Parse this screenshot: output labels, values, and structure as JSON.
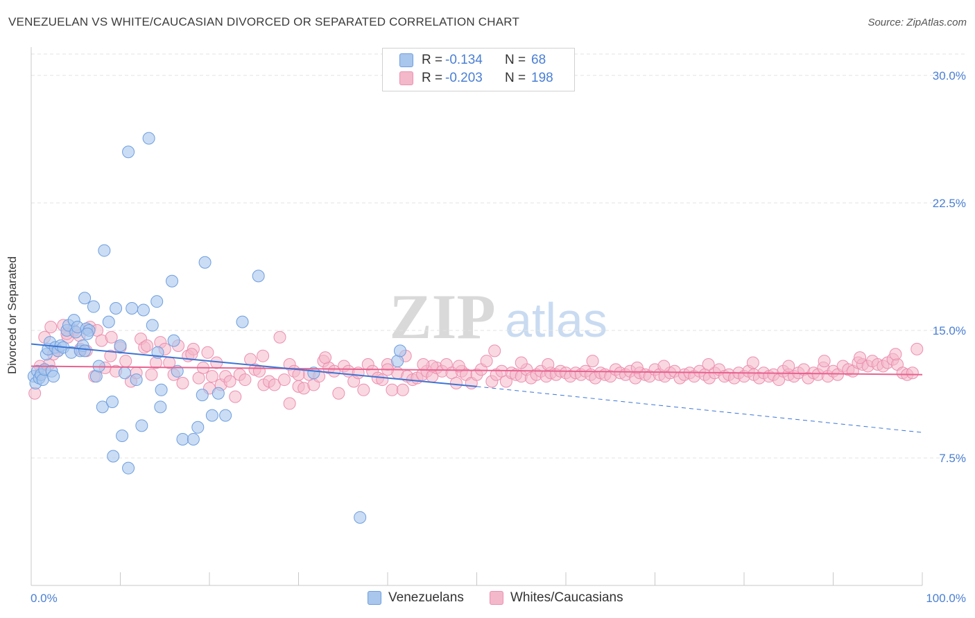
{
  "title": "VENEZUELAN VS WHITE/CAUCASIAN DIVORCED OR SEPARATED CORRELATION CHART",
  "source": "Source: ZipAtlas.com",
  "watermark": {
    "zip": "ZIP",
    "atlas": "atlas"
  },
  "legend": {
    "rows": [
      {
        "label": "R =",
        "r": "-0.134",
        "n_label": "N =",
        "n": "68"
      },
      {
        "label": "R =",
        "r": "-0.203",
        "n_label": "N =",
        "n": "198"
      }
    ]
  },
  "bottom_legend": [
    "Venezuelans",
    "Whites/Caucasians"
  ],
  "colors": {
    "blue_fill": "#a9c6ec",
    "blue_stroke": "#6d9ee0",
    "blue_line": "#3b74d4",
    "pink_fill": "#f4b8cb",
    "pink_stroke": "#ec8fae",
    "pink_line": "#e8628f",
    "axis_text": "#4a7fd4",
    "grid": "#e3e3e3"
  },
  "chart_data": {
    "type": "scatter",
    "title": "VENEZUELAN VS WHITE/CAUCASIAN DIVORCED OR SEPARATED CORRELATION CHART",
    "xlabel": "",
    "ylabel": "Divorced or Separated",
    "xlim": [
      0,
      100
    ],
    "ylim": [
      0,
      31.5
    ],
    "x_tick_labels": [
      "0.0%",
      "100.0%"
    ],
    "y_ticks": [
      7.5,
      15.0,
      22.5,
      30.0
    ],
    "y_tick_labels": [
      "7.5%",
      "15.0%",
      "22.5%",
      "30.0%"
    ],
    "grid": true,
    "legend_position": "top-center",
    "series": [
      {
        "name": "Venezuelans",
        "R": -0.134,
        "N": 68,
        "trend": {
          "x0": 0,
          "y0": 14.2,
          "x1": 50,
          "y1": 11.7,
          "dash_to_x": 100,
          "dash_to_y": 9.0
        },
        "points": [
          [
            0.3,
            12.3
          ],
          [
            0.5,
            11.9
          ],
          [
            0.7,
            12.6
          ],
          [
            0.9,
            12.2
          ],
          [
            1.1,
            12.4
          ],
          [
            1.3,
            12.1
          ],
          [
            1.5,
            12.7
          ],
          [
            1.7,
            13.6
          ],
          [
            1.9,
            13.9
          ],
          [
            2.1,
            14.3
          ],
          [
            2.3,
            12.6
          ],
          [
            2.5,
            12.3
          ],
          [
            2.7,
            14.0
          ],
          [
            3.0,
            13.8
          ],
          [
            3.3,
            14.1
          ],
          [
            3.6,
            14.0
          ],
          [
            4.0,
            15.0
          ],
          [
            4.2,
            15.3
          ],
          [
            4.5,
            13.7
          ],
          [
            4.8,
            15.6
          ],
          [
            5.0,
            14.9
          ],
          [
            5.2,
            15.2
          ],
          [
            5.5,
            13.8
          ],
          [
            5.8,
            14.1
          ],
          [
            6.0,
            16.9
          ],
          [
            6.2,
            15.1
          ],
          [
            6.5,
            15.0
          ],
          [
            6.0,
            13.8
          ],
          [
            6.3,
            14.8
          ],
          [
            7.3,
            12.3
          ],
          [
            7.6,
            12.9
          ],
          [
            8.0,
            10.5
          ],
          [
            7.0,
            16.4
          ],
          [
            8.2,
            19.7
          ],
          [
            8.7,
            15.5
          ],
          [
            9.2,
            7.6
          ],
          [
            9.1,
            10.8
          ],
          [
            9.5,
            16.3
          ],
          [
            10.0,
            14.1
          ],
          [
            10.2,
            8.8
          ],
          [
            10.5,
            12.5
          ],
          [
            10.9,
            6.9
          ],
          [
            11.3,
            16.3
          ],
          [
            11.8,
            12.1
          ],
          [
            12.4,
            9.4
          ],
          [
            12.6,
            16.2
          ],
          [
            13.2,
            26.3
          ],
          [
            13.6,
            15.3
          ],
          [
            14.1,
            16.7
          ],
          [
            14.2,
            13.7
          ],
          [
            14.6,
            11.5
          ],
          [
            14.5,
            10.5
          ],
          [
            15.8,
            17.9
          ],
          [
            16.0,
            14.4
          ],
          [
            16.4,
            12.6
          ],
          [
            17.0,
            8.6
          ],
          [
            10.9,
            25.5
          ],
          [
            18.2,
            8.6
          ],
          [
            18.7,
            9.3
          ],
          [
            19.2,
            11.2
          ],
          [
            19.5,
            19.0
          ],
          [
            20.3,
            10.0
          ],
          [
            21.0,
            11.3
          ],
          [
            21.8,
            10.0
          ],
          [
            23.7,
            15.5
          ],
          [
            25.5,
            18.2
          ],
          [
            31.7,
            12.5
          ],
          [
            36.9,
            4.0
          ],
          [
            41.1,
            13.2
          ],
          [
            41.4,
            13.8
          ]
        ]
      },
      {
        "name": "Whites/Caucasians",
        "R": -0.203,
        "N": 198,
        "trend": {
          "x0": 0,
          "y0": 12.9,
          "x1": 100,
          "y1": 12.4
        },
        "points": [
          [
            0.4,
            11.3
          ],
          [
            1.1,
            12.5
          ],
          [
            1.5,
            14.6
          ],
          [
            2.0,
            13.0
          ],
          [
            2.2,
            15.2
          ],
          [
            3.0,
            13.8
          ],
          [
            3.6,
            15.3
          ],
          [
            4.1,
            14.6
          ],
          [
            4.8,
            15.0
          ],
          [
            5.4,
            14.7
          ],
          [
            6.2,
            13.8
          ],
          [
            6.6,
            15.2
          ],
          [
            7.1,
            12.3
          ],
          [
            7.4,
            15.0
          ],
          [
            7.9,
            14.4
          ],
          [
            8.3,
            12.8
          ],
          [
            8.9,
            13.5
          ],
          [
            9.5,
            12.6
          ],
          [
            10.0,
            14.0
          ],
          [
            10.6,
            13.2
          ],
          [
            11.2,
            12.0
          ],
          [
            11.8,
            12.5
          ],
          [
            12.3,
            14.5
          ],
          [
            12.7,
            14.0
          ],
          [
            13.0,
            14.1
          ],
          [
            13.5,
            12.4
          ],
          [
            14.0,
            13.1
          ],
          [
            14.5,
            14.3
          ],
          [
            15.0,
            13.9
          ],
          [
            15.5,
            13.1
          ],
          [
            16.0,
            12.4
          ],
          [
            16.5,
            14.1
          ],
          [
            17.0,
            11.9
          ],
          [
            17.6,
            13.5
          ],
          [
            18.2,
            13.9
          ],
          [
            18.8,
            12.2
          ],
          [
            19.3,
            12.8
          ],
          [
            19.8,
            13.7
          ],
          [
            20.3,
            12.3
          ],
          [
            20.8,
            13.1
          ],
          [
            21.3,
            11.8
          ],
          [
            21.8,
            12.3
          ],
          [
            22.3,
            12.0
          ],
          [
            22.9,
            11.1
          ],
          [
            23.4,
            12.4
          ],
          [
            24.0,
            12.1
          ],
          [
            24.6,
            13.3
          ],
          [
            25.1,
            12.7
          ],
          [
            25.6,
            12.6
          ],
          [
            26.1,
            11.8
          ],
          [
            26.7,
            12.0
          ],
          [
            27.3,
            11.8
          ],
          [
            27.9,
            14.6
          ],
          [
            28.4,
            12.1
          ],
          [
            29.0,
            13.0
          ],
          [
            29.5,
            12.6
          ],
          [
            30.0,
            11.7
          ],
          [
            30.6,
            11.6
          ],
          [
            31.2,
            12.4
          ],
          [
            31.7,
            11.8
          ],
          [
            32.3,
            12.3
          ],
          [
            32.8,
            13.2
          ],
          [
            33.4,
            12.8
          ],
          [
            34.0,
            12.6
          ],
          [
            34.5,
            11.3
          ],
          [
            35.1,
            12.9
          ],
          [
            35.6,
            12.6
          ],
          [
            36.2,
            12.0
          ],
          [
            36.7,
            12.5
          ],
          [
            37.3,
            11.5
          ],
          [
            37.8,
            13.0
          ],
          [
            38.3,
            12.6
          ],
          [
            38.9,
            12.2
          ],
          [
            39.4,
            12.1
          ],
          [
            40.0,
            13.0
          ],
          [
            40.5,
            11.5
          ],
          [
            41.1,
            12.5
          ],
          [
            41.7,
            11.5
          ],
          [
            42.2,
            12.3
          ],
          [
            42.8,
            12.1
          ],
          [
            43.3,
            12.2
          ],
          [
            43.9,
            12.4
          ],
          [
            44.4,
            12.6
          ],
          [
            45.0,
            12.3
          ],
          [
            45.5,
            12.8
          ],
          [
            46.1,
            12.6
          ],
          [
            46.6,
            13.0
          ],
          [
            47.2,
            12.5
          ],
          [
            47.7,
            11.9
          ],
          [
            48.3,
            12.6
          ],
          [
            48.8,
            12.4
          ],
          [
            49.4,
            11.9
          ],
          [
            50.0,
            12.4
          ],
          [
            50.5,
            12.7
          ],
          [
            51.1,
            13.2
          ],
          [
            51.7,
            12.0
          ],
          [
            52.2,
            12.4
          ],
          [
            52.8,
            12.6
          ],
          [
            53.3,
            12.0
          ],
          [
            53.9,
            12.5
          ],
          [
            54.4,
            12.4
          ],
          [
            55.0,
            12.3
          ],
          [
            55.6,
            12.7
          ],
          [
            56.1,
            12.2
          ],
          [
            56.7,
            12.4
          ],
          [
            57.2,
            12.6
          ],
          [
            57.8,
            12.3
          ],
          [
            58.3,
            12.5
          ],
          [
            58.9,
            12.4
          ],
          [
            59.4,
            12.6
          ],
          [
            60.0,
            12.5
          ],
          [
            60.5,
            12.3
          ],
          [
            61.1,
            12.5
          ],
          [
            61.7,
            12.4
          ],
          [
            62.2,
            12.6
          ],
          [
            62.8,
            12.4
          ],
          [
            63.3,
            12.2
          ],
          [
            63.9,
            12.5
          ],
          [
            64.4,
            12.4
          ],
          [
            65.0,
            12.3
          ],
          [
            65.6,
            12.7
          ],
          [
            66.1,
            12.5
          ],
          [
            66.7,
            12.4
          ],
          [
            67.2,
            12.6
          ],
          [
            67.8,
            12.2
          ],
          [
            68.3,
            12.5
          ],
          [
            68.9,
            12.4
          ],
          [
            69.4,
            12.3
          ],
          [
            70.0,
            12.7
          ],
          [
            70.5,
            12.4
          ],
          [
            71.1,
            12.3
          ],
          [
            71.7,
            12.5
          ],
          [
            72.2,
            12.6
          ],
          [
            72.8,
            12.2
          ],
          [
            73.3,
            12.4
          ],
          [
            73.9,
            12.5
          ],
          [
            74.4,
            12.3
          ],
          [
            75.0,
            12.6
          ],
          [
            75.6,
            12.4
          ],
          [
            76.1,
            12.2
          ],
          [
            76.7,
            12.5
          ],
          [
            77.2,
            12.7
          ],
          [
            77.8,
            12.3
          ],
          [
            78.3,
            12.4
          ],
          [
            78.9,
            12.2
          ],
          [
            79.4,
            12.5
          ],
          [
            80.0,
            12.3
          ],
          [
            80.5,
            12.6
          ],
          [
            81.1,
            12.4
          ],
          [
            81.7,
            12.2
          ],
          [
            82.2,
            12.5
          ],
          [
            82.8,
            12.3
          ],
          [
            83.3,
            12.4
          ],
          [
            83.9,
            12.1
          ],
          [
            84.4,
            12.6
          ],
          [
            85.0,
            12.4
          ],
          [
            85.6,
            12.3
          ],
          [
            86.1,
            12.5
          ],
          [
            86.7,
            12.7
          ],
          [
            87.2,
            12.2
          ],
          [
            87.8,
            12.5
          ],
          [
            88.3,
            12.4
          ],
          [
            88.9,
            12.8
          ],
          [
            89.4,
            12.3
          ],
          [
            90.0,
            12.6
          ],
          [
            90.5,
            12.4
          ],
          [
            91.1,
            12.9
          ],
          [
            91.7,
            12.7
          ],
          [
            92.2,
            12.6
          ],
          [
            92.8,
            13.1
          ],
          [
            93.3,
            13.0
          ],
          [
            93.9,
            12.9
          ],
          [
            94.4,
            13.2
          ],
          [
            95.0,
            13.0
          ],
          [
            95.6,
            12.9
          ],
          [
            96.1,
            13.1
          ],
          [
            96.7,
            13.3
          ],
          [
            97.2,
            13.0
          ],
          [
            97.8,
            12.5
          ],
          [
            98.3,
            12.4
          ],
          [
            98.9,
            12.5
          ],
          [
            99.4,
            13.9
          ],
          [
            48.0,
            12.9
          ],
          [
            52.0,
            13.8
          ],
          [
            58.0,
            13.0
          ],
          [
            63.0,
            13.2
          ],
          [
            68.0,
            12.8
          ],
          [
            45.0,
            12.9
          ],
          [
            55.0,
            13.1
          ],
          [
            71.0,
            12.9
          ],
          [
            76.0,
            13.0
          ],
          [
            81.0,
            13.1
          ],
          [
            85.0,
            12.9
          ],
          [
            89.0,
            13.2
          ],
          [
            93.0,
            13.4
          ],
          [
            97.0,
            13.6
          ],
          [
            42.0,
            13.5
          ],
          [
            33.0,
            13.4
          ],
          [
            30.0,
            12.4
          ],
          [
            26.0,
            13.5
          ],
          [
            18.0,
            13.6
          ],
          [
            9.0,
            14.6
          ],
          [
            4.0,
            14.8
          ],
          [
            2.5,
            13.6
          ],
          [
            1.0,
            12.9
          ],
          [
            5.5,
            13.9
          ],
          [
            20.0,
            11.6
          ],
          [
            29.0,
            10.7
          ],
          [
            40.0,
            12.7
          ],
          [
            44.0,
            13.0
          ]
        ]
      }
    ]
  }
}
